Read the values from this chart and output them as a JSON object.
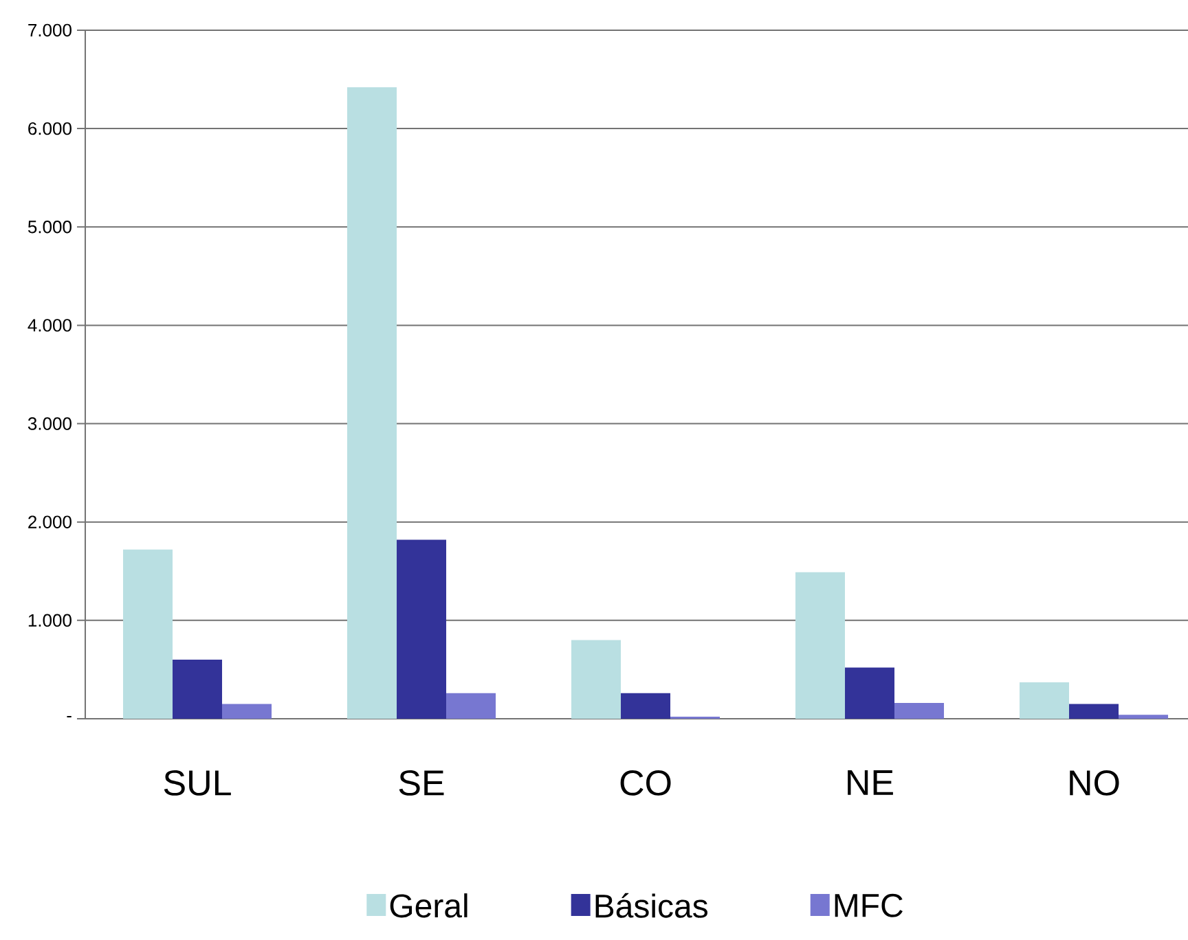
{
  "chart_data": {
    "type": "bar",
    "categories": [
      "SUL",
      "SE",
      "CO",
      "NE",
      "NO"
    ],
    "series": [
      {
        "name": "Geral",
        "color": "#b9dfe2",
        "values": [
          1720,
          6420,
          800,
          1490,
          370
        ]
      },
      {
        "name": "Básicas",
        "color": "#333399",
        "values": [
          600,
          1820,
          260,
          520,
          150
        ]
      },
      {
        "name": "MFC",
        "color": "#7777d1",
        "values": [
          150,
          260,
          20,
          160,
          40
        ]
      }
    ],
    "ylim": [
      0,
      7000
    ],
    "yticks": [
      {
        "value": 0,
        "label": "-"
      },
      {
        "value": 1000,
        "label": "1.000"
      },
      {
        "value": 2000,
        "label": "2.000"
      },
      {
        "value": 3000,
        "label": "3.000"
      },
      {
        "value": 4000,
        "label": "4.000"
      },
      {
        "value": 5000,
        "label": "5.000"
      },
      {
        "value": 6000,
        "label": "6.000"
      },
      {
        "value": 7000,
        "label": "7.000"
      }
    ],
    "grid": "y",
    "legend": "bottom"
  }
}
